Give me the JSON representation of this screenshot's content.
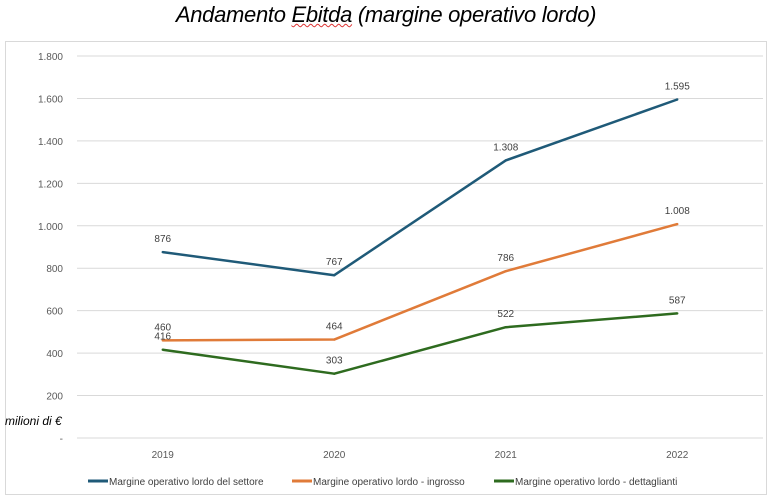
{
  "chart_data": {
    "type": "line",
    "title_parts": [
      "Andamento ",
      "Ebitda",
      " (margine operativo lordo)"
    ],
    "ylabel": "milioni di €",
    "categories": [
      "2019",
      "2020",
      "2021",
      "2022"
    ],
    "ylim": [
      0,
      1800
    ],
    "yticks": [
      0,
      200,
      400,
      600,
      800,
      1000,
      1200,
      1400,
      1600,
      1800
    ],
    "ytick_labels": [
      "-",
      "200",
      "400",
      "600",
      "800",
      "1.000",
      "1.200",
      "1.400",
      "1.600",
      "1.800"
    ],
    "grid": true,
    "legend_position": "bottom",
    "series": [
      {
        "name": "Margine operativo lordo del settore",
        "color": "#1f5a78",
        "values": [
          876,
          767,
          1308,
          1595
        ],
        "labels": [
          "876",
          "767",
          "1.308",
          "1.595"
        ]
      },
      {
        "name": "Margine operativo lordo - ingrosso",
        "color": "#e07b39",
        "values": [
          460,
          464,
          786,
          1008
        ],
        "labels": [
          "460",
          "464",
          "786",
          "1.008"
        ]
      },
      {
        "name": "Margine operativo lordo - dettaglianti",
        "color": "#2e6b1f",
        "values": [
          416,
          303,
          522,
          587
        ],
        "labels": [
          "416",
          "303",
          "522",
          "587"
        ]
      }
    ]
  }
}
